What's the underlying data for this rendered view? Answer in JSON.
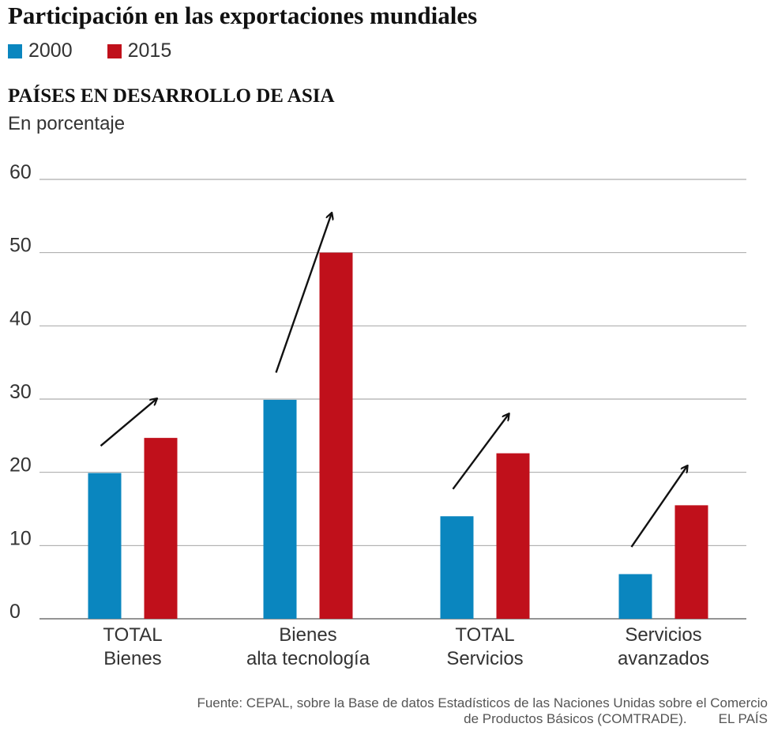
{
  "title": "Participación en las exportaciones mundiales",
  "subtitle": "PAÍSES EN DESARROLLO DE ASIA",
  "unit": "En porcentaje",
  "legend": [
    {
      "label": "2000",
      "color": "#0a86bf"
    },
    {
      "label": "2015",
      "color": "#c0101b"
    }
  ],
  "source": {
    "line1": "Fuente: CEPAL, sobre la Base de datos Estadísticos de las Naciones Unidas sobre el Comercio",
    "line2": "de Productos Básicos (COMTRADE).",
    "brand": "EL PAÍS"
  },
  "chart_data": {
    "type": "bar",
    "title": "PAÍSES EN DESARROLLO DE ASIA",
    "ylabel": "En porcentaje",
    "ylim": [
      0,
      60
    ],
    "yticks": [
      0,
      10,
      20,
      30,
      40,
      50,
      60
    ],
    "grid": true,
    "categories": [
      [
        "TOTAL",
        "Bienes"
      ],
      [
        "Bienes",
        "alta tecnología"
      ],
      [
        "TOTAL",
        "Servicios"
      ],
      [
        "Servicios",
        "avanzados"
      ]
    ],
    "series": [
      {
        "name": "2000",
        "color": "#0a86bf",
        "values": [
          19.9,
          29.9,
          14.0,
          6.1
        ]
      },
      {
        "name": "2015",
        "color": "#c0101b",
        "values": [
          24.7,
          50.0,
          22.6,
          15.5
        ]
      }
    ],
    "annotations": "Flechas ascendentes entre 2000 y 2015"
  }
}
